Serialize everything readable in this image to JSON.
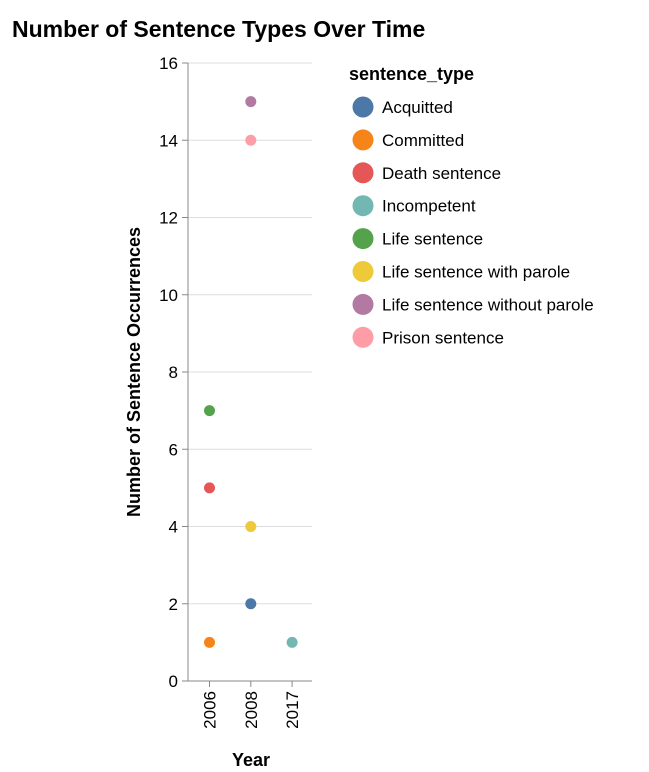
{
  "chart_data": {
    "type": "scatter",
    "title": "Number of Sentence Types Over Time",
    "xlabel": "Year",
    "ylabel": "Number of Sentence Occurrences",
    "x_categories": [
      "2006",
      "2008",
      "2017"
    ],
    "ylim": [
      0,
      16
    ],
    "y_ticks": [
      0,
      2,
      4,
      6,
      8,
      10,
      12,
      14,
      16
    ],
    "grid": true,
    "legend": {
      "title": "sentence_type",
      "placement": "right",
      "entries": [
        {
          "name": "Acquitted",
          "color": "#4c78a8"
        },
        {
          "name": "Committed",
          "color": "#f58518"
        },
        {
          "name": "Death sentence",
          "color": "#e45756"
        },
        {
          "name": "Incompetent",
          "color": "#72b7b2"
        },
        {
          "name": "Life sentence",
          "color": "#54a24b"
        },
        {
          "name": "Life sentence with parole",
          "color": "#eeca3b"
        },
        {
          "name": "Life sentence without parole",
          "color": "#b279a2"
        },
        {
          "name": "Prison sentence",
          "color": "#ff9da6"
        }
      ]
    },
    "points": [
      {
        "x": "2006",
        "y": 1,
        "series": "Committed"
      },
      {
        "x": "2006",
        "y": 5,
        "series": "Death sentence"
      },
      {
        "x": "2006",
        "y": 7,
        "series": "Life sentence"
      },
      {
        "x": "2008",
        "y": 2,
        "series": "Acquitted"
      },
      {
        "x": "2008",
        "y": 4,
        "series": "Life sentence with parole"
      },
      {
        "x": "2008",
        "y": 14,
        "series": "Prison sentence"
      },
      {
        "x": "2008",
        "y": 15,
        "series": "Life sentence without parole"
      },
      {
        "x": "2017",
        "y": 1,
        "series": "Incompetent"
      }
    ]
  }
}
